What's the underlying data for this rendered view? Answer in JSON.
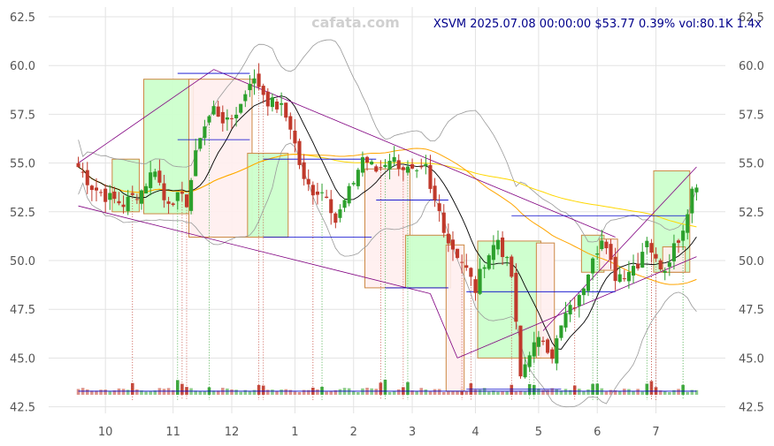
{
  "chart_data": {
    "type": "candlestick",
    "title": "XSVM 2025.07.08 00:00:00 $53.77 0.39% vol:80.1K 1.4x",
    "watermark": "cafata.com",
    "ylim": [
      42.3,
      63.0
    ],
    "y_ticks": [
      "42.5",
      "45.0",
      "47.5",
      "50.0",
      "52.5",
      "55.0",
      "57.5",
      "60.0",
      "62.5"
    ],
    "x_ticks": [
      "10",
      "11",
      "12",
      "1",
      "2",
      "3",
      "4",
      "5",
      "6",
      "7"
    ],
    "grid": true,
    "colors": {
      "up": "#2ca02c",
      "down": "#c0392b",
      "ma_fast": "#000000",
      "ma_mid": "#ffa500",
      "ma_slow": "#ffd700",
      "bollinger": "#999999",
      "trend": "#800080",
      "level": "#0000cc",
      "box_up_fill": "#ccffcc",
      "box_down_fill": "#ffeeee",
      "box_border": "#cc8844"
    },
    "price_path": [
      [
        0,
        54.8
      ],
      [
        3,
        53.8
      ],
      [
        6,
        53.3
      ],
      [
        10,
        52.9
      ],
      [
        14,
        53.6
      ],
      [
        17,
        54.8
      ],
      [
        19,
        53.1
      ],
      [
        22,
        53.2
      ],
      [
        24,
        53.0
      ],
      [
        27,
        56.5
      ],
      [
        30,
        57.8
      ],
      [
        33,
        57.0
      ],
      [
        36,
        58.0
      ],
      [
        38,
        59.3
      ],
      [
        40,
        59.0
      ],
      [
        42,
        58.2
      ],
      [
        45,
        57.8
      ],
      [
        47,
        56.9
      ],
      [
        50,
        54.0
      ],
      [
        52,
        53.6
      ],
      [
        55,
        53.5
      ],
      [
        57,
        52.0
      ],
      [
        60,
        53.5
      ],
      [
        63,
        55.3
      ],
      [
        66,
        54.6
      ],
      [
        69,
        55.3
      ],
      [
        72,
        54.8
      ],
      [
        75,
        54.3
      ],
      [
        77,
        54.7
      ],
      [
        78,
        53.5
      ],
      [
        80,
        52.5
      ],
      [
        82,
        51.0
      ],
      [
        85,
        50.0
      ],
      [
        88,
        48.5
      ],
      [
        90,
        50.0
      ],
      [
        93,
        51.1
      ],
      [
        96,
        49.2
      ],
      [
        98,
        44.0
      ],
      [
        100,
        45.4
      ],
      [
        103,
        46.0
      ],
      [
        105,
        45.2
      ],
      [
        108,
        47.2
      ],
      [
        111,
        48.0
      ],
      [
        114,
        50.4
      ],
      [
        116,
        51.0
      ],
      [
        119,
        49.2
      ],
      [
        121,
        49.4
      ],
      [
        124,
        49.9
      ],
      [
        126,
        51.2
      ],
      [
        128,
        49.9
      ],
      [
        130,
        49.7
      ],
      [
        132,
        50.8
      ],
      [
        134,
        51.6
      ],
      [
        136,
        53.7
      ],
      [
        137,
        53.8
      ]
    ],
    "boxes": [
      {
        "start": 8,
        "end": 13,
        "top": 55.2,
        "bottom": 52.5,
        "trend": "up"
      },
      {
        "start": 15,
        "end": 25,
        "top": 59.3,
        "bottom": 52.4,
        "trend": "up"
      },
      {
        "start": 25,
        "end": 38,
        "top": 59.3,
        "bottom": 51.2,
        "trend": "down"
      },
      {
        "start": 38,
        "end": 46,
        "top": 55.5,
        "bottom": 51.2,
        "trend": "up"
      },
      {
        "start": 64,
        "end": 73,
        "top": 54.7,
        "bottom": 48.6,
        "trend": "down"
      },
      {
        "start": 73,
        "end": 82,
        "top": 51.3,
        "bottom": 48.6,
        "trend": "up"
      },
      {
        "start": 82,
        "end": 85,
        "top": 50.8,
        "bottom": 43.3,
        "trend": "down"
      },
      {
        "start": 89,
        "end": 102,
        "top": 51.0,
        "bottom": 45.0,
        "trend": "up"
      },
      {
        "start": 102,
        "end": 105,
        "top": 50.9,
        "bottom": 45.0,
        "trend": "down"
      },
      {
        "start": 112,
        "end": 116,
        "top": 51.3,
        "bottom": 49.4,
        "trend": "up"
      },
      {
        "start": 116,
        "end": 119,
        "top": 51.1,
        "bottom": 49.5,
        "trend": "down"
      },
      {
        "start": 128,
        "end": 135,
        "top": 54.6,
        "bottom": 49.4,
        "trend": "up"
      },
      {
        "start": 130,
        "end": 134,
        "top": 50.7,
        "bottom": 49.4,
        "trend": "down"
      }
    ],
    "trendlines": [
      {
        "from": [
          0,
          55.0
        ],
        "to": [
          30,
          59.8
        ]
      },
      {
        "from": [
          30,
          59.8
        ],
        "to": [
          119,
          51.2
        ]
      },
      {
        "from": [
          0,
          52.8
        ],
        "to": [
          78,
          48.3
        ]
      },
      {
        "from": [
          78,
          48.3
        ],
        "to": [
          84,
          45.0
        ]
      },
      {
        "from": [
          84,
          45.0
        ],
        "to": [
          137,
          50.2
        ]
      },
      {
        "from": [
          103,
          46.4
        ],
        "to": [
          137,
          54.8
        ]
      }
    ],
    "levels": [
      {
        "from": 22,
        "to": 38,
        "y": 59.6
      },
      {
        "from": 22,
        "to": 38,
        "y": 56.2
      },
      {
        "from": 41,
        "to": 66,
        "y": 55.2
      },
      {
        "from": 41,
        "to": 65,
        "y": 51.2
      },
      {
        "from": 66,
        "to": 82,
        "y": 53.1
      },
      {
        "from": 68,
        "to": 82,
        "y": 48.6
      },
      {
        "from": 86,
        "to": 119,
        "y": 48.4
      },
      {
        "from": 86,
        "to": 107,
        "y": 43.4
      },
      {
        "from": 96,
        "to": 135,
        "y": 52.3
      },
      {
        "from": 0,
        "to": 137,
        "y": 43.3
      }
    ],
    "signal_days": [
      12,
      22,
      23,
      24,
      29,
      40,
      41,
      52,
      54,
      67,
      68,
      72,
      73,
      85,
      87,
      96,
      100,
      101,
      110,
      114,
      115,
      126,
      127,
      128,
      134
    ]
  }
}
